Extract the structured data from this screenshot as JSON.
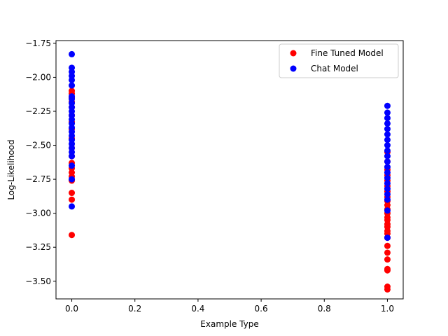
{
  "chart_data": {
    "type": "scatter",
    "xlabel": "Example Type",
    "ylabel": "Log-Likelihood",
    "xlim": [
      -0.05,
      1.05
    ],
    "ylim": [
      -3.63,
      -1.73
    ],
    "xticks": [
      0.0,
      0.2,
      0.4,
      0.6,
      0.8,
      1.0
    ],
    "xtick_labels": [
      "0.0",
      "0.2",
      "0.4",
      "0.6",
      "0.8",
      "1.0"
    ],
    "yticks": [
      -1.75,
      -2.0,
      -2.25,
      -2.5,
      -2.75,
      -3.0,
      -3.25,
      -3.5
    ],
    "ytick_labels": [
      "−1.75",
      "−2.00",
      "−2.25",
      "−2.50",
      "−2.75",
      "−3.00",
      "−3.25",
      "−3.50"
    ],
    "grid": false,
    "legend_position": "top-right",
    "series": [
      {
        "name": "Fine Tuned Model",
        "color": "#ff0000",
        "points": [
          {
            "x": 0,
            "y": -2.1
          },
          {
            "x": 0,
            "y": -2.12
          },
          {
            "x": 0,
            "y": -2.15
          },
          {
            "x": 0,
            "y": -2.18
          },
          {
            "x": 0,
            "y": -2.22
          },
          {
            "x": 0,
            "y": -2.28
          },
          {
            "x": 0,
            "y": -2.33
          },
          {
            "x": 0,
            "y": -2.38
          },
          {
            "x": 0,
            "y": -2.45
          },
          {
            "x": 0,
            "y": -2.52
          },
          {
            "x": 0,
            "y": -2.58
          },
          {
            "x": 0,
            "y": -2.63
          },
          {
            "x": 0,
            "y": -2.67
          },
          {
            "x": 0,
            "y": -2.7
          },
          {
            "x": 0,
            "y": -2.73
          },
          {
            "x": 0,
            "y": -2.76
          },
          {
            "x": 0,
            "y": -2.85
          },
          {
            "x": 0,
            "y": -2.9
          },
          {
            "x": 0,
            "y": -3.16
          },
          {
            "x": 1,
            "y": -2.55
          },
          {
            "x": 1,
            "y": -2.62
          },
          {
            "x": 1,
            "y": -2.68
          },
          {
            "x": 1,
            "y": -2.72
          },
          {
            "x": 1,
            "y": -2.76
          },
          {
            "x": 1,
            "y": -2.8
          },
          {
            "x": 1,
            "y": -2.84
          },
          {
            "x": 1,
            "y": -2.88
          },
          {
            "x": 1,
            "y": -2.91
          },
          {
            "x": 1,
            "y": -2.94
          },
          {
            "x": 1,
            "y": -2.97
          },
          {
            "x": 1,
            "y": -3.0
          },
          {
            "x": 1,
            "y": -3.03
          },
          {
            "x": 1,
            "y": -3.05
          },
          {
            "x": 1,
            "y": -3.08
          },
          {
            "x": 1,
            "y": -3.1
          },
          {
            "x": 1,
            "y": -3.13
          },
          {
            "x": 1,
            "y": -3.15
          },
          {
            "x": 1,
            "y": -3.18
          },
          {
            "x": 1,
            "y": -3.24
          },
          {
            "x": 1,
            "y": -3.29
          },
          {
            "x": 1,
            "y": -3.34
          },
          {
            "x": 1,
            "y": -3.41
          },
          {
            "x": 1,
            "y": -3.42
          },
          {
            "x": 1,
            "y": -3.54
          },
          {
            "x": 1,
            "y": -3.56
          }
        ]
      },
      {
        "name": "Chat Model",
        "color": "#0000ff",
        "points": [
          {
            "x": 0,
            "y": -1.83
          },
          {
            "x": 0,
            "y": -1.93
          },
          {
            "x": 0,
            "y": -1.96
          },
          {
            "x": 0,
            "y": -1.99
          },
          {
            "x": 0,
            "y": -2.02
          },
          {
            "x": 0,
            "y": -2.06
          },
          {
            "x": 0,
            "y": -2.14
          },
          {
            "x": 0,
            "y": -2.16
          },
          {
            "x": 0,
            "y": -2.19
          },
          {
            "x": 0,
            "y": -2.22
          },
          {
            "x": 0,
            "y": -2.25
          },
          {
            "x": 0,
            "y": -2.28
          },
          {
            "x": 0,
            "y": -2.31
          },
          {
            "x": 0,
            "y": -2.34
          },
          {
            "x": 0,
            "y": -2.37
          },
          {
            "x": 0,
            "y": -2.4
          },
          {
            "x": 0,
            "y": -2.43
          },
          {
            "x": 0,
            "y": -2.46
          },
          {
            "x": 0,
            "y": -2.49
          },
          {
            "x": 0,
            "y": -2.52
          },
          {
            "x": 0,
            "y": -2.55
          },
          {
            "x": 0,
            "y": -2.58
          },
          {
            "x": 0,
            "y": -2.65
          },
          {
            "x": 0,
            "y": -2.75
          },
          {
            "x": 0,
            "y": -2.95
          },
          {
            "x": 1,
            "y": -2.21
          },
          {
            "x": 1,
            "y": -2.26
          },
          {
            "x": 1,
            "y": -2.3
          },
          {
            "x": 1,
            "y": -2.34
          },
          {
            "x": 1,
            "y": -2.38
          },
          {
            "x": 1,
            "y": -2.42
          },
          {
            "x": 1,
            "y": -2.46
          },
          {
            "x": 1,
            "y": -2.5
          },
          {
            "x": 1,
            "y": -2.54
          },
          {
            "x": 1,
            "y": -2.58
          },
          {
            "x": 1,
            "y": -2.62
          },
          {
            "x": 1,
            "y": -2.66
          },
          {
            "x": 1,
            "y": -2.7
          },
          {
            "x": 1,
            "y": -2.74
          },
          {
            "x": 1,
            "y": -2.78
          },
          {
            "x": 1,
            "y": -2.82
          },
          {
            "x": 1,
            "y": -2.86
          },
          {
            "x": 1,
            "y": -2.9
          },
          {
            "x": 1,
            "y": -2.98
          },
          {
            "x": 1,
            "y": -3.18
          }
        ]
      }
    ]
  }
}
